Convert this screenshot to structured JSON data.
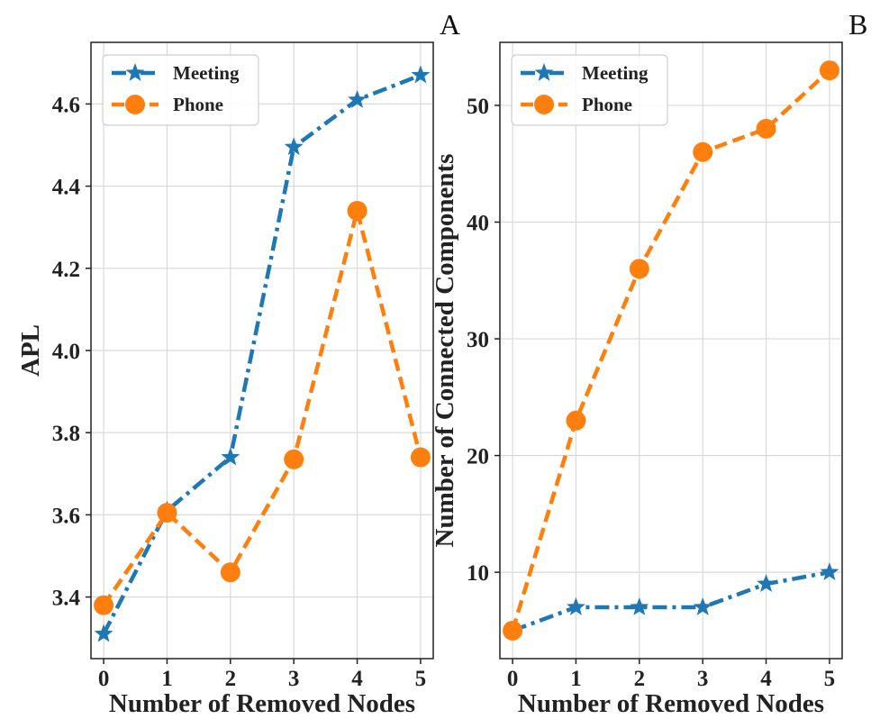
{
  "chart_data": [
    {
      "type": "line",
      "panel_label": "A",
      "xlabel": "Number of Removed Nodes",
      "ylabel": "APL",
      "x": [
        0,
        1,
        2,
        3,
        4,
        5
      ],
      "xlim": [
        -0.2,
        5.2
      ],
      "ylim": [
        3.25,
        4.75
      ],
      "yticks": [
        3.4,
        3.6,
        3.8,
        4.0,
        4.2,
        4.4,
        4.6
      ],
      "ytick_labels": [
        "3.4",
        "3.6",
        "3.8",
        "4.0",
        "4.2",
        "4.4",
        "4.6"
      ],
      "xtick_labels": [
        "0",
        "1",
        "2",
        "3",
        "4",
        "5"
      ],
      "grid": true,
      "legend_position": "top-left",
      "series": [
        {
          "name": "Meeting",
          "values": [
            3.31,
            3.61,
            3.74,
            4.495,
            4.61,
            4.67
          ],
          "color": "#1f77b4",
          "marker": "star",
          "linestyle": "dashdot"
        },
        {
          "name": "Phone",
          "values": [
            3.38,
            3.605,
            3.46,
            3.735,
            4.34,
            3.74
          ],
          "color": "#ff7f0e",
          "marker": "circle",
          "linestyle": "dashed"
        }
      ]
    },
    {
      "type": "line",
      "panel_label": "B",
      "xlabel": "Number of Removed Nodes",
      "ylabel": "Number of Connected Components",
      "x": [
        0,
        1,
        2,
        3,
        4,
        5
      ],
      "xlim": [
        -0.2,
        5.2
      ],
      "ylim": [
        2.6,
        55.4
      ],
      "yticks": [
        10,
        20,
        30,
        40,
        50
      ],
      "ytick_labels": [
        "10",
        "20",
        "30",
        "40",
        "50"
      ],
      "xtick_labels": [
        "0",
        "1",
        "2",
        "3",
        "4",
        "5"
      ],
      "grid": true,
      "legend_position": "top-left",
      "series": [
        {
          "name": "Meeting",
          "values": [
            5,
            7,
            7,
            7,
            9,
            10
          ],
          "color": "#1f77b4",
          "marker": "star",
          "linestyle": "dashdot"
        },
        {
          "name": "Phone",
          "values": [
            5,
            23,
            36,
            46,
            48,
            53
          ],
          "color": "#ff7f0e",
          "marker": "circle",
          "linestyle": "dashed"
        }
      ]
    }
  ]
}
